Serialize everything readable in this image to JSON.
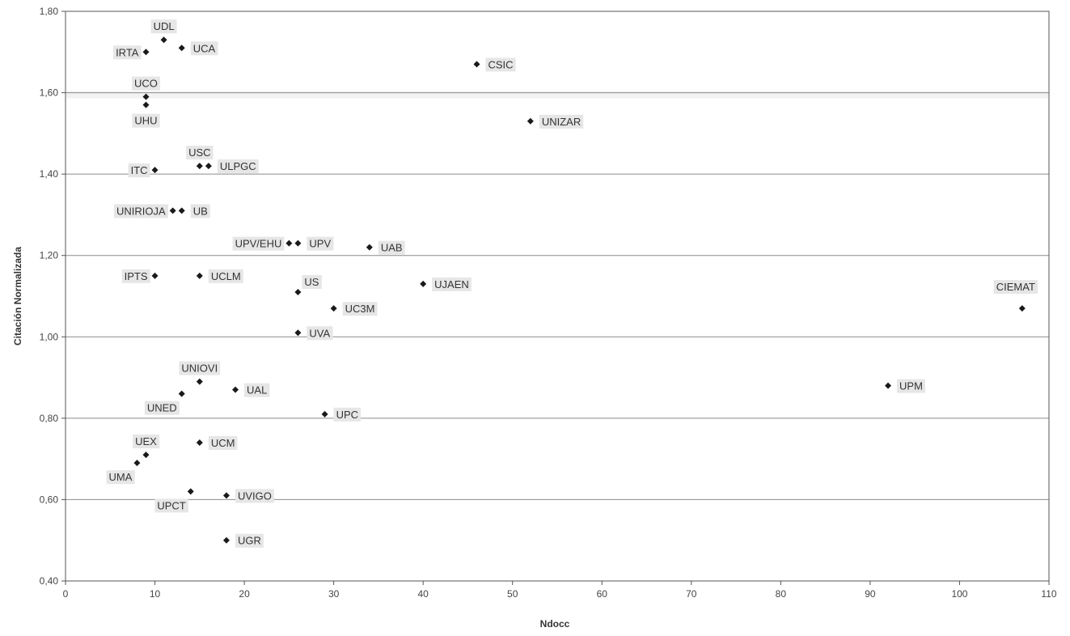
{
  "chart_data": {
    "type": "scatter",
    "xlabel": "Ndocc",
    "ylabel": "Citación  Normalizada",
    "xlim": [
      0,
      110
    ],
    "ylim": [
      0.4,
      1.8
    ],
    "x_ticks": [
      0,
      10,
      20,
      30,
      40,
      50,
      60,
      70,
      80,
      90,
      100,
      110
    ],
    "x_tick_labels": [
      "0",
      "10",
      "20",
      "30",
      "40",
      "50",
      "60",
      "70",
      "80",
      "90",
      "100",
      "110"
    ],
    "y_ticks": [
      0.4,
      0.6,
      0.8,
      1.0,
      1.2,
      1.4,
      1.6,
      1.8
    ],
    "y_tick_labels": [
      "0,40",
      "0,60",
      "0,80",
      "1,00",
      "1,20",
      "1,40",
      "1,60",
      "1,80"
    ],
    "grid": "horizontal",
    "legend": "none",
    "marker": "diamond",
    "colors": {
      "point": "#1a1a1a",
      "grid": "#8c8c8c",
      "label_bg": "#e6e6e6",
      "band": "#f2f2f2"
    },
    "points": [
      {
        "label": "UDL",
        "x": 11,
        "y": 1.73,
        "pos": "above"
      },
      {
        "label": "UCA",
        "x": 13,
        "y": 1.71,
        "pos": "right"
      },
      {
        "label": "IRTA",
        "x": 9,
        "y": 1.7,
        "pos": "left"
      },
      {
        "label": "CSIC",
        "x": 46,
        "y": 1.67,
        "pos": "right"
      },
      {
        "label": "UCO",
        "x": 9,
        "y": 1.59,
        "pos": "above"
      },
      {
        "label": "UHU",
        "x": 9,
        "y": 1.57,
        "pos": "below"
      },
      {
        "label": "UNIZAR",
        "x": 52,
        "y": 1.53,
        "pos": "right"
      },
      {
        "label": "USC",
        "x": 15,
        "y": 1.42,
        "pos": "above"
      },
      {
        "label": "ULPGC",
        "x": 16,
        "y": 1.42,
        "pos": "right"
      },
      {
        "label": "ITC",
        "x": 10,
        "y": 1.41,
        "pos": "left"
      },
      {
        "label": "UNIRIOJA",
        "x": 12,
        "y": 1.31,
        "pos": "left"
      },
      {
        "label": "UB",
        "x": 13,
        "y": 1.31,
        "pos": "right"
      },
      {
        "label": "UPV/EHU",
        "x": 25,
        "y": 1.23,
        "pos": "left"
      },
      {
        "label": "UPV",
        "x": 26,
        "y": 1.23,
        "pos": "right"
      },
      {
        "label": "UAB",
        "x": 34,
        "y": 1.22,
        "pos": "right"
      },
      {
        "label": "IPTS",
        "x": 10,
        "y": 1.15,
        "pos": "left"
      },
      {
        "label": "UCLM",
        "x": 15,
        "y": 1.15,
        "pos": "right"
      },
      {
        "label": "UJAEN",
        "x": 40,
        "y": 1.13,
        "pos": "right"
      },
      {
        "label": "US",
        "x": 26,
        "y": 1.11,
        "pos": "above-right"
      },
      {
        "label": "UC3M",
        "x": 30,
        "y": 1.07,
        "pos": "right"
      },
      {
        "label": "CIEMAT",
        "x": 107,
        "y": 1.07,
        "pos": "above-left"
      },
      {
        "label": "UVA",
        "x": 26,
        "y": 1.01,
        "pos": "right"
      },
      {
        "label": "UNIOVI",
        "x": 15,
        "y": 0.89,
        "pos": "above"
      },
      {
        "label": "UPM",
        "x": 92,
        "y": 0.88,
        "pos": "right"
      },
      {
        "label": "UAL",
        "x": 19,
        "y": 0.87,
        "pos": "right"
      },
      {
        "label": "UNED",
        "x": 13,
        "y": 0.86,
        "pos": "below-left"
      },
      {
        "label": "UPC",
        "x": 29,
        "y": 0.81,
        "pos": "right"
      },
      {
        "label": "UCM",
        "x": 15,
        "y": 0.74,
        "pos": "right"
      },
      {
        "label": "UEX",
        "x": 9,
        "y": 0.71,
        "pos": "above"
      },
      {
        "label": "UMA",
        "x": 8,
        "y": 0.69,
        "pos": "below-left"
      },
      {
        "label": "UPCT",
        "x": 14,
        "y": 0.62,
        "pos": "below-left"
      },
      {
        "label": "UVIGO",
        "x": 18,
        "y": 0.61,
        "pos": "right"
      },
      {
        "label": "UGR",
        "x": 18,
        "y": 0.5,
        "pos": "right"
      }
    ]
  }
}
